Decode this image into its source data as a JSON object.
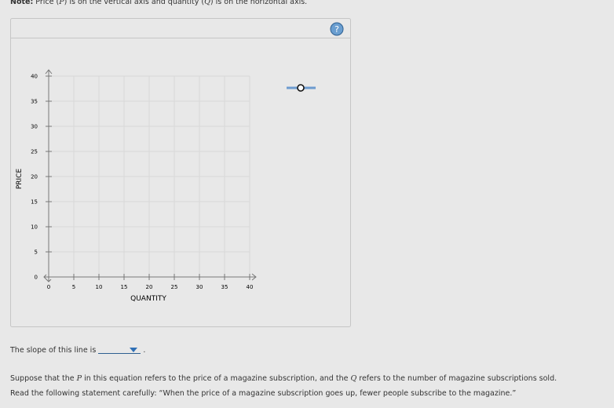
{
  "note": {
    "label": "Note:",
    "parts": [
      "Price (",
      "P",
      ") is on the vertical axis and quantity (",
      "Q",
      ") is on the horizontal axis."
    ]
  },
  "graph": {
    "y_label": "PRICE",
    "x_label": "QUANTITY",
    "xlim": [
      0,
      40
    ],
    "ylim": [
      0,
      40
    ],
    "xticks": [
      0,
      5,
      10,
      15,
      20,
      25,
      30,
      35,
      40
    ],
    "yticks": [
      0,
      5,
      10,
      15,
      20,
      25,
      30,
      35,
      40
    ],
    "grid": true
  },
  "help": "?",
  "question": {
    "before": "The slope of this line is",
    "after": "."
  },
  "paragraphs": [
    [
      "Suppose that the ",
      "P",
      " in this equation refers to the price of a magazine subscription, and the ",
      "Q",
      " refers to the number of magazine subscriptions sold."
    ],
    [
      "Read the following statement carefully: “When the price of a magazine subscription goes up, fewer people subscribe to the magazine.”"
    ]
  ]
}
